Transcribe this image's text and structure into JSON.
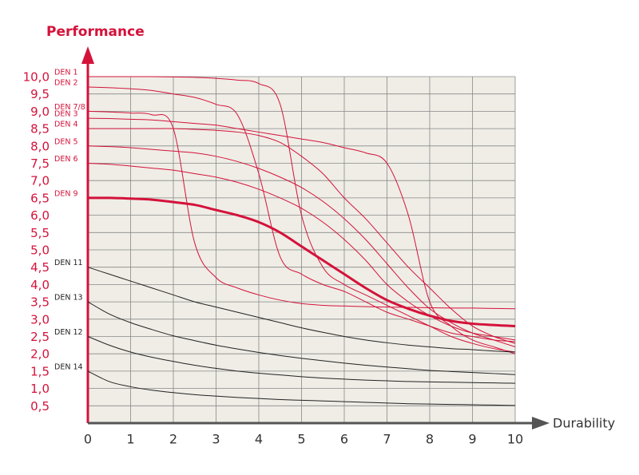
{
  "chart_data": {
    "type": "line",
    "y_label": "Performance",
    "x_label": "Durability",
    "x": [
      0,
      0.5,
      1,
      1.5,
      2,
      2.5,
      3,
      3.5,
      4,
      4.5,
      5,
      5.5,
      6,
      6.5,
      7,
      7.5,
      8,
      8.5,
      9,
      9.5,
      10
    ],
    "xlim": [
      0,
      10
    ],
    "xticks": [
      0,
      1,
      2,
      3,
      4,
      5,
      6,
      7,
      8,
      9,
      10
    ],
    "ylim": [
      0,
      10
    ],
    "yticks": [
      {
        "value": 0.5,
        "label": "0,5"
      },
      {
        "value": 1,
        "label": "1,0"
      },
      {
        "value": 1.5,
        "label": "1,5"
      },
      {
        "value": 2,
        "label": "2,0"
      },
      {
        "value": 2.5,
        "label": "2,5"
      },
      {
        "value": 3,
        "label": "3,0"
      },
      {
        "value": 3.5,
        "label": "3,5"
      },
      {
        "value": 4,
        "label": "4,0"
      },
      {
        "value": 4.5,
        "label": "4,5"
      },
      {
        "value": 5,
        "label": "5,0"
      },
      {
        "value": 5.5,
        "label": "5,5"
      },
      {
        "value": 6,
        "label": "6,0"
      },
      {
        "value": 6.5,
        "label": "6,5"
      },
      {
        "value": 7,
        "label": "7,0"
      },
      {
        "value": 7.5,
        "label": "7,5"
      },
      {
        "value": 8,
        "label": "8,0"
      },
      {
        "value": 8.5,
        "label": "8,5"
      },
      {
        "value": 9,
        "label": "9,0"
      },
      {
        "value": 9.5,
        "label": "9,5"
      },
      {
        "value": 10,
        "label": "10,0"
      }
    ],
    "grid": true,
    "series": [
      {
        "name": "DEN 1",
        "color": "#d4123a",
        "values": [
          10,
          10,
          10,
          10,
          9.99,
          9.98,
          9.95,
          9.9,
          9.8,
          9.2,
          6.0,
          4.5,
          4.0,
          3.7,
          3.4,
          3.1,
          2.8,
          2.5,
          2.3,
          2.15,
          2.05
        ]
      },
      {
        "name": "DEN 2",
        "color": "#d4123a",
        "values": [
          9.7,
          9.68,
          9.65,
          9.6,
          9.5,
          9.4,
          9.2,
          8.9,
          7.2,
          4.8,
          4.3,
          4.0,
          3.8,
          3.5,
          3.2,
          3.0,
          2.8,
          2.6,
          2.5,
          2.4,
          2.35
        ]
      },
      {
        "name": "DEN 7/8",
        "color": "#d4123a",
        "values": [
          9.0,
          8.98,
          8.95,
          8.9,
          8.5,
          5.2,
          4.2,
          3.9,
          3.7,
          3.55,
          3.45,
          3.4,
          3.38,
          3.36,
          3.35,
          3.34,
          3.33,
          3.32,
          3.32,
          3.31,
          3.3
        ]
      },
      {
        "name": "DEN 3",
        "color": "#d4123a",
        "values": [
          8.8,
          8.79,
          8.77,
          8.75,
          8.7,
          8.65,
          8.6,
          8.5,
          8.4,
          8.3,
          8.2,
          8.1,
          7.95,
          7.8,
          7.5,
          6.0,
          3.5,
          2.8,
          2.4,
          2.2,
          2.0
        ]
      },
      {
        "name": "DEN 4",
        "color": "#d4123a",
        "values": [
          8.5,
          8.5,
          8.5,
          8.5,
          8.5,
          8.48,
          8.45,
          8.4,
          8.3,
          8.1,
          7.7,
          7.2,
          6.5,
          5.9,
          5.2,
          4.5,
          3.9,
          3.3,
          2.8,
          2.5,
          2.3
        ]
      },
      {
        "name": "DEN 5",
        "color": "#d4123a",
        "values": [
          8.0,
          7.98,
          7.95,
          7.9,
          7.85,
          7.8,
          7.7,
          7.55,
          7.35,
          7.1,
          6.8,
          6.4,
          5.9,
          5.3,
          4.6,
          3.9,
          3.3,
          2.9,
          2.6,
          2.4,
          2.2
        ]
      },
      {
        "name": "DEN 6",
        "color": "#d4123a",
        "values": [
          7.5,
          7.47,
          7.42,
          7.36,
          7.3,
          7.2,
          7.1,
          6.95,
          6.75,
          6.5,
          6.2,
          5.8,
          5.3,
          4.7,
          4.0,
          3.5,
          3.1,
          2.8,
          2.6,
          2.5,
          2.4
        ]
      },
      {
        "name": "DEN 9",
        "color": "#d4123a",
        "width": 3,
        "values": [
          6.5,
          6.5,
          6.48,
          6.45,
          6.38,
          6.3,
          6.15,
          6.0,
          5.8,
          5.5,
          5.1,
          4.7,
          4.3,
          3.9,
          3.55,
          3.3,
          3.1,
          2.95,
          2.87,
          2.83,
          2.8
        ]
      },
      {
        "name": "DEN 11",
        "color": "#222222",
        "values": [
          4.5,
          4.3,
          4.1,
          3.9,
          3.7,
          3.5,
          3.35,
          3.2,
          3.05,
          2.9,
          2.75,
          2.62,
          2.5,
          2.4,
          2.32,
          2.25,
          2.2,
          2.15,
          2.12,
          2.08,
          2.05
        ]
      },
      {
        "name": "DEN 13",
        "color": "#222222",
        "values": [
          3.5,
          3.15,
          2.9,
          2.7,
          2.52,
          2.38,
          2.25,
          2.14,
          2.04,
          1.95,
          1.87,
          1.8,
          1.73,
          1.67,
          1.62,
          1.57,
          1.52,
          1.49,
          1.46,
          1.43,
          1.4
        ]
      },
      {
        "name": "DEN 12",
        "color": "#222222",
        "values": [
          2.5,
          2.25,
          2.05,
          1.9,
          1.78,
          1.67,
          1.58,
          1.5,
          1.44,
          1.39,
          1.34,
          1.3,
          1.27,
          1.24,
          1.22,
          1.2,
          1.19,
          1.18,
          1.17,
          1.16,
          1.15
        ]
      },
      {
        "name": "DEN 14",
        "color": "#222222",
        "values": [
          1.5,
          1.2,
          1.05,
          0.95,
          0.88,
          0.82,
          0.78,
          0.74,
          0.71,
          0.68,
          0.66,
          0.64,
          0.62,
          0.6,
          0.58,
          0.56,
          0.55,
          0.54,
          0.53,
          0.52,
          0.51
        ]
      }
    ]
  }
}
